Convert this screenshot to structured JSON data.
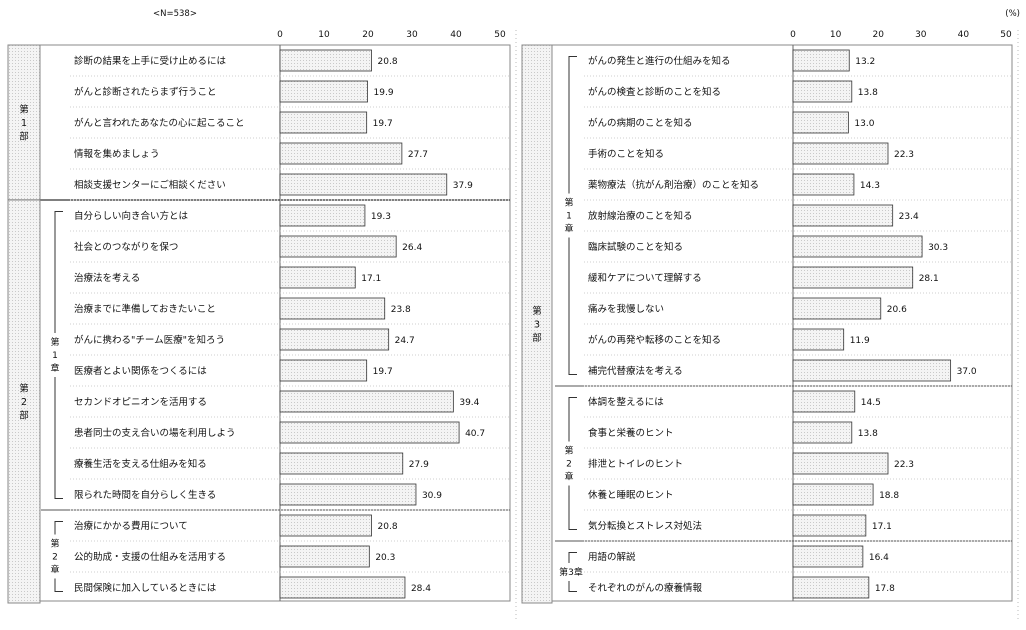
{
  "header": {
    "n_label": "<N=538>",
    "unit_label": "(%)"
  },
  "chart_data": [
    {
      "type": "bar",
      "orientation": "horizontal",
      "xlim": [
        0,
        50
      ],
      "ticks": [
        "0",
        "10",
        "20",
        "30",
        "40",
        "50"
      ],
      "grid": false,
      "bar_fill": "#d6d6d6",
      "parts": [
        {
          "label": "第\n1\n部",
          "chapters": [
            {
              "label": "",
              "items": [
                {
                  "label": "診断の結果を上手に受け止めるには",
                  "value": 20.8
                },
                {
                  "label": "がんと診断されたらまず行うこと",
                  "value": 19.9
                },
                {
                  "label": "がんと言われたあなたの心に起こること",
                  "value": 19.7
                },
                {
                  "label": "情報を集めましょう",
                  "value": 27.7
                },
                {
                  "label": "相談支援センターにご相談ください",
                  "value": 37.9
                }
              ]
            }
          ]
        },
        {
          "label": "第\n2\n部",
          "chapters": [
            {
              "label": "第\n1\n章",
              "items": [
                {
                  "label": "自分らしい向き合い方とは",
                  "value": 19.3
                },
                {
                  "label": "社会とのつながりを保つ",
                  "value": 26.4
                },
                {
                  "label": "治療法を考える",
                  "value": 17.1
                },
                {
                  "label": "治療までに準備しておきたいこと",
                  "value": 23.8
                },
                {
                  "label": "がんに携わる\"チーム医療\"を知ろう",
                  "value": 24.7
                },
                {
                  "label": "医療者とよい関係をつくるには",
                  "value": 19.7
                },
                {
                  "label": "セカンドオピニオンを活用する",
                  "value": 39.4
                },
                {
                  "label": "患者同士の支え合いの場を利用しよう",
                  "value": 40.7
                },
                {
                  "label": "療養生活を支える仕組みを知る",
                  "value": 27.9
                },
                {
                  "label": "限られた時間を自分らしく生きる",
                  "value": 30.9
                }
              ]
            },
            {
              "label": "第\n2\n章",
              "items": [
                {
                  "label": "治療にかかる費用について",
                  "value": 20.8
                },
                {
                  "label": "公的助成・支援の仕組みを活用する",
                  "value": 20.3
                },
                {
                  "label": "民間保険に加入しているときには",
                  "value": 28.4
                }
              ]
            }
          ]
        }
      ]
    },
    {
      "type": "bar",
      "orientation": "horizontal",
      "xlim": [
        0,
        50
      ],
      "ticks": [
        "0",
        "10",
        "20",
        "30",
        "40",
        "50"
      ],
      "grid": false,
      "bar_fill": "#d6d6d6",
      "parts": [
        {
          "label": "第\n3\n部",
          "chapters": [
            {
              "label": "第\n1\n章",
              "items": [
                {
                  "label": "がんの発生と進行の仕組みを知る",
                  "value": 13.2
                },
                {
                  "label": "がんの検査と診断のことを知る",
                  "value": 13.8
                },
                {
                  "label": "がんの病期のことを知る",
                  "value": 13.0
                },
                {
                  "label": "手術のことを知る",
                  "value": 22.3
                },
                {
                  "label": "薬物療法（抗がん剤治療）のことを知る",
                  "value": 14.3
                },
                {
                  "label": "放射線治療のことを知る",
                  "value": 23.4
                },
                {
                  "label": "臨床試験のことを知る",
                  "value": 30.3
                },
                {
                  "label": "緩和ケアについて理解する",
                  "value": 28.1
                },
                {
                  "label": "痛みを我慢しない",
                  "value": 20.6
                },
                {
                  "label": "がんの再発や転移のことを知る",
                  "value": 11.9
                },
                {
                  "label": "補完代替療法を考える",
                  "value": 37.0
                }
              ]
            },
            {
              "label": "第\n2\n章",
              "items": [
                {
                  "label": "体調を整えるには",
                  "value": 14.5
                },
                {
                  "label": "食事と栄養のヒント",
                  "value": 13.8
                },
                {
                  "label": "排泄とトイレのヒント",
                  "value": 22.3
                },
                {
                  "label": "休養と睡眠のヒント",
                  "value": 18.8
                },
                {
                  "label": "気分転換とストレス対処法",
                  "value": 17.1
                }
              ]
            },
            {
              "label": "第3章",
              "items": [
                {
                  "label": "用語の解説",
                  "value": 16.4
                },
                {
                  "label": "それぞれのがんの療養情報",
                  "value": 17.8
                }
              ]
            }
          ]
        }
      ]
    }
  ]
}
